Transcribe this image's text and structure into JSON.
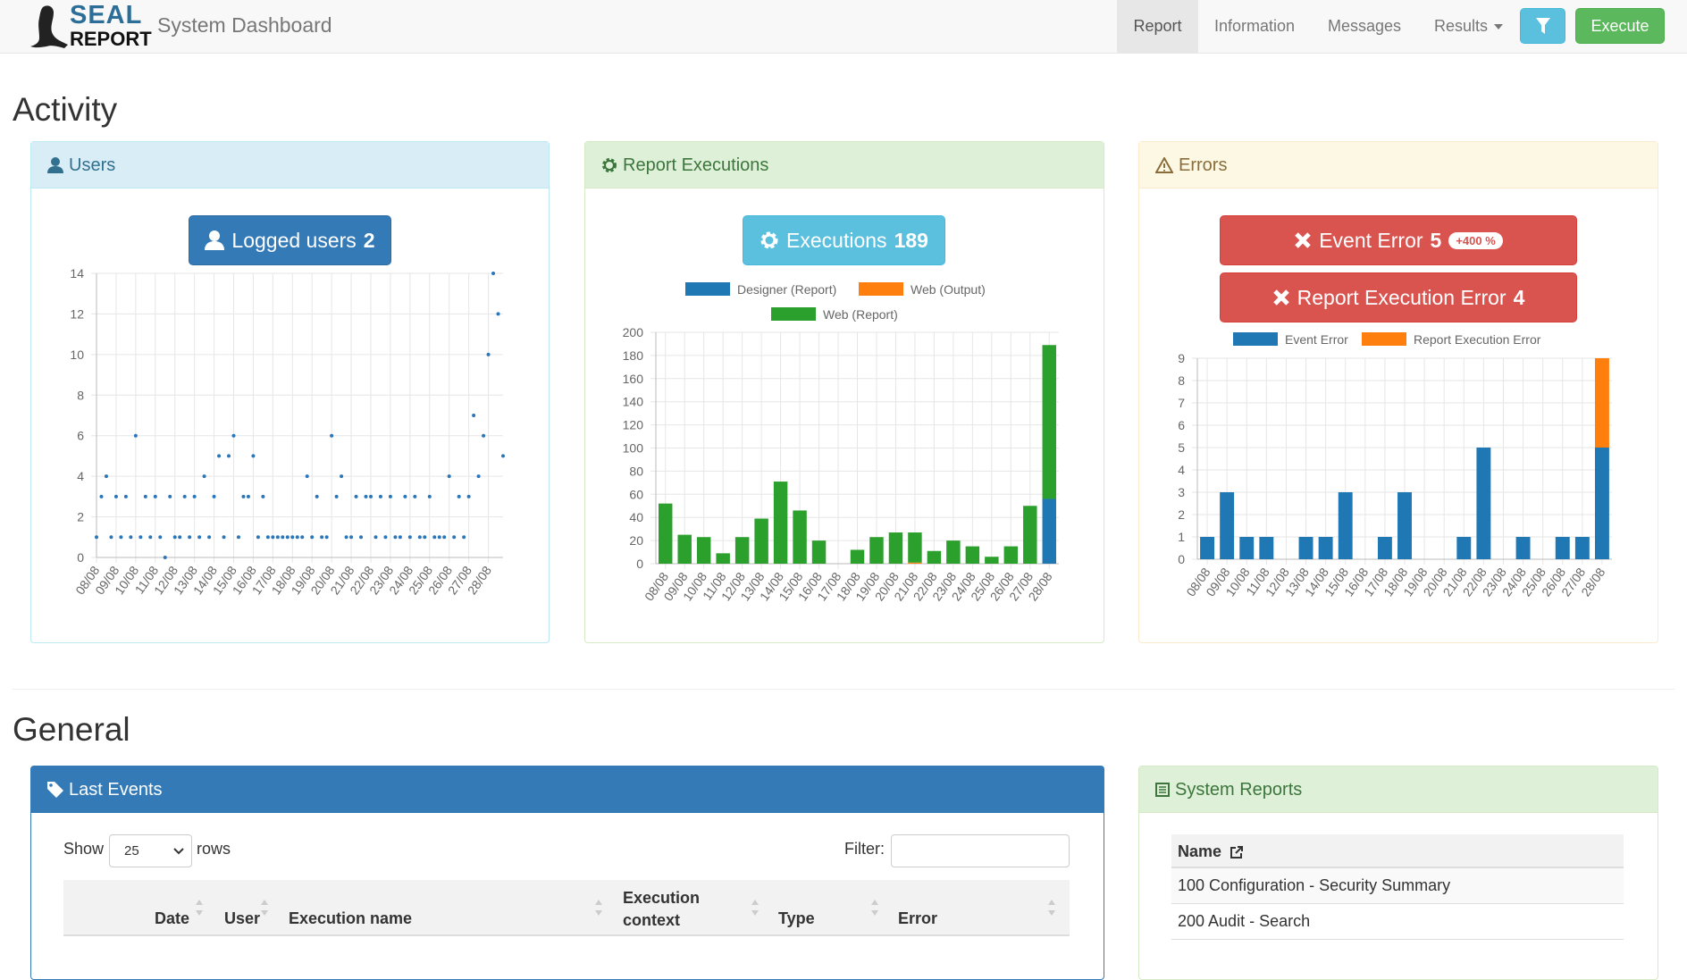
{
  "navbar": {
    "brand_top": "SEAL",
    "brand_bottom": "REPORT",
    "title": "System Dashboard",
    "menu": [
      "Report",
      "Information",
      "Messages",
      "Results"
    ],
    "execute": "Execute"
  },
  "sections": {
    "activity": "Activity",
    "general": "General"
  },
  "panels": {
    "users": {
      "title": "Users",
      "button_label": "Logged users",
      "button_value": 2
    },
    "executions": {
      "title": "Report Executions",
      "button_label": "Executions",
      "button_value": 189
    },
    "errors": {
      "title": "Errors",
      "event_label": "Event Error",
      "event_value": 5,
      "event_badge": "+400 %",
      "report_label": "Report Execution Error",
      "report_value": 4
    },
    "last_events": {
      "title": "Last Events",
      "show": "Show",
      "rows_option": "25",
      "rows": "rows",
      "filter": "Filter:",
      "columns": [
        "Date",
        "User",
        "Execution name",
        "Execution context",
        "Type",
        "Error"
      ]
    },
    "system_reports": {
      "title": "System Reports",
      "header": "Name",
      "rows": [
        "100 Configuration - Security Summary",
        "200 Audit - Search"
      ]
    }
  },
  "chart_data": [
    {
      "type": "line",
      "color": "#2a76b9",
      "grid": true,
      "categories": [
        "08/08",
        null,
        null,
        null,
        "09/08",
        null,
        null,
        null,
        "10/08",
        null,
        null,
        null,
        "11/08",
        null,
        null,
        null,
        "12/08",
        null,
        null,
        null,
        "13/08",
        null,
        null,
        null,
        "14/08",
        null,
        null,
        null,
        "15/08",
        null,
        null,
        null,
        "16/08",
        null,
        null,
        null,
        "17/08",
        null,
        null,
        null,
        "18/08",
        null,
        null,
        null,
        "19/08",
        null,
        null,
        null,
        "20/08",
        null,
        null,
        null,
        "21/08",
        null,
        null,
        null,
        "22/08",
        null,
        null,
        null,
        "23/08",
        null,
        null,
        null,
        "24/08",
        null,
        null,
        null,
        "25/08",
        null,
        null,
        null,
        "26/08",
        null,
        null,
        null,
        "27/08",
        null,
        null,
        null,
        "28/08",
        null,
        null,
        null
      ],
      "values": [
        1,
        3,
        4,
        1,
        3,
        1,
        3,
        1,
        6,
        1,
        3,
        1,
        3,
        1,
        0,
        3,
        1,
        1,
        3,
        1,
        3,
        1,
        4,
        1,
        3,
        5,
        1,
        5,
        6,
        1,
        3,
        3,
        5,
        1,
        3,
        1,
        1,
        1,
        1,
        1,
        1,
        1,
        1,
        4,
        1,
        3,
        1,
        1,
        6,
        3,
        4,
        1,
        1,
        3,
        1,
        3,
        3,
        1,
        3,
        1,
        3,
        1,
        1,
        3,
        1,
        3,
        1,
        1,
        3,
        1,
        1,
        1,
        4,
        1,
        3,
        1,
        3,
        7,
        4,
        6,
        10,
        14,
        12,
        5
      ],
      "ylim": [
        0,
        14
      ],
      "yticks": [
        0,
        2,
        4,
        6,
        8,
        10,
        12,
        14
      ]
    },
    {
      "type": "bar",
      "stacked": true,
      "grid": true,
      "categories": [
        "08/08",
        "09/08",
        "10/08",
        "11/08",
        "12/08",
        "13/08",
        "14/08",
        "15/08",
        "16/08",
        "17/08",
        "18/08",
        "19/08",
        "20/08",
        "21/08",
        "22/08",
        "23/08",
        "24/08",
        "25/08",
        "26/08",
        "27/08",
        "28/08"
      ],
      "series": [
        {
          "name": "Designer (Report)",
          "color": "#1f77b4",
          "values": [
            0,
            0,
            0,
            0,
            0,
            0,
            0,
            0,
            0,
            0,
            0,
            0,
            0,
            0,
            0,
            0,
            0,
            0,
            0,
            0,
            56
          ]
        },
        {
          "name": "Web (Output)",
          "color": "#ff7f0e",
          "values": [
            0,
            0,
            0,
            0,
            0,
            0,
            0,
            0,
            0,
            0,
            0,
            0,
            0,
            1,
            0,
            0,
            0,
            0,
            0,
            0,
            0
          ]
        },
        {
          "name": "Web (Report)",
          "color": "#2ca02c",
          "values": [
            52,
            25,
            23,
            9,
            23,
            39,
            71,
            46,
            20,
            0,
            12,
            23,
            27,
            26,
            11,
            20,
            15,
            6,
            15,
            50,
            133
          ]
        }
      ],
      "ylim": [
        0,
        200
      ],
      "yticks": [
        0,
        20,
        40,
        60,
        80,
        100,
        120,
        140,
        160,
        180,
        200
      ]
    },
    {
      "type": "bar",
      "stacked": true,
      "grid": true,
      "categories": [
        "08/08",
        "09/08",
        "10/08",
        "11/08",
        "12/08",
        "13/08",
        "14/08",
        "15/08",
        "16/08",
        "17/08",
        "18/08",
        "19/08",
        "20/08",
        "21/08",
        "22/08",
        "23/08",
        "24/08",
        "25/08",
        "26/08",
        "27/08",
        "28/08"
      ],
      "series": [
        {
          "name": "Event Error",
          "color": "#1f77b4",
          "values": [
            1,
            3,
            1,
            1,
            0,
            1,
            1,
            3,
            0,
            1,
            3,
            0,
            0,
            1,
            5,
            0,
            1,
            0,
            1,
            1,
            5
          ]
        },
        {
          "name": "Report Execution Error",
          "color": "#ff7f0e",
          "values": [
            0,
            0,
            0,
            0,
            0,
            0,
            0,
            0,
            0,
            0,
            0,
            0,
            0,
            0,
            0,
            0,
            0,
            0,
            0,
            0,
            4
          ]
        }
      ],
      "ylim": [
        0,
        9
      ],
      "yticks": [
        0,
        1,
        2,
        3,
        4,
        5,
        6,
        7,
        8,
        9
      ]
    }
  ]
}
